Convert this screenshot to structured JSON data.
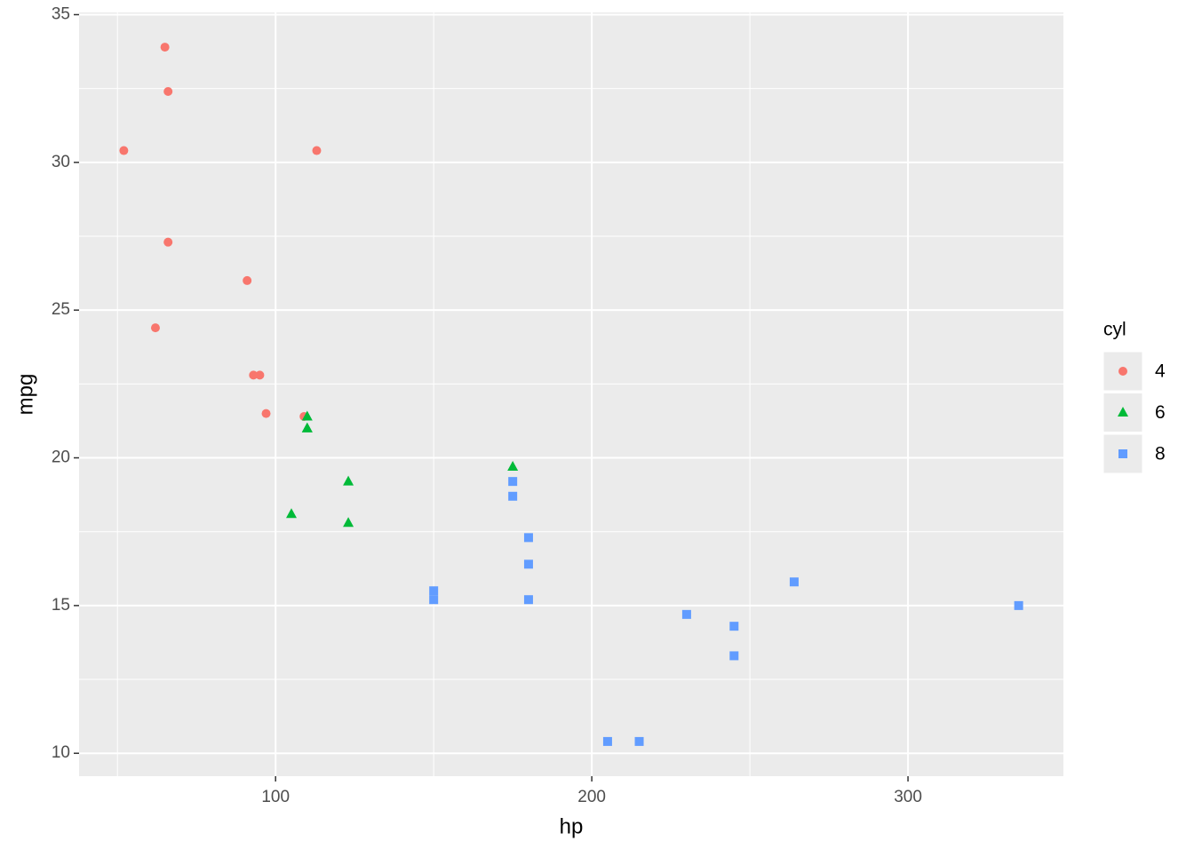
{
  "chart_data": {
    "type": "scatter",
    "x_label": "hp",
    "y_label": "mpg",
    "legend_title": "cyl",
    "legend": "right",
    "xlim": [
      37.85,
      349.15
    ],
    "xticks": [
      100,
      200,
      300
    ],
    "ylim": [
      9.225,
      35.075
    ],
    "yticks": [
      10,
      15,
      20,
      25,
      30,
      35
    ],
    "grid": true,
    "series": [
      {
        "name": "4",
        "color": "#F8766D",
        "shape": "circle",
        "x": [
          93,
          62,
          95,
          66,
          52,
          65,
          97,
          66,
          91,
          113,
          109
        ],
        "values": [
          22.8,
          24.4,
          22.8,
          32.4,
          30.4,
          33.9,
          21.5,
          27.3,
          26.0,
          30.4,
          21.4
        ]
      },
      {
        "name": "6",
        "color": "#00BA38",
        "shape": "triangle",
        "x": [
          110,
          110,
          110,
          105,
          123,
          123,
          175
        ],
        "values": [
          21.0,
          21.0,
          21.4,
          18.1,
          19.2,
          17.8,
          19.7
        ]
      },
      {
        "name": "8",
        "color": "#619CFF",
        "shape": "square",
        "x": [
          175,
          245,
          180,
          180,
          180,
          205,
          215,
          230,
          150,
          150,
          245,
          175,
          264,
          335
        ],
        "values": [
          18.7,
          14.3,
          16.4,
          17.3,
          15.2,
          10.4,
          10.4,
          14.7,
          15.5,
          15.2,
          13.3,
          19.2,
          15.8,
          15.0
        ]
      }
    ]
  }
}
